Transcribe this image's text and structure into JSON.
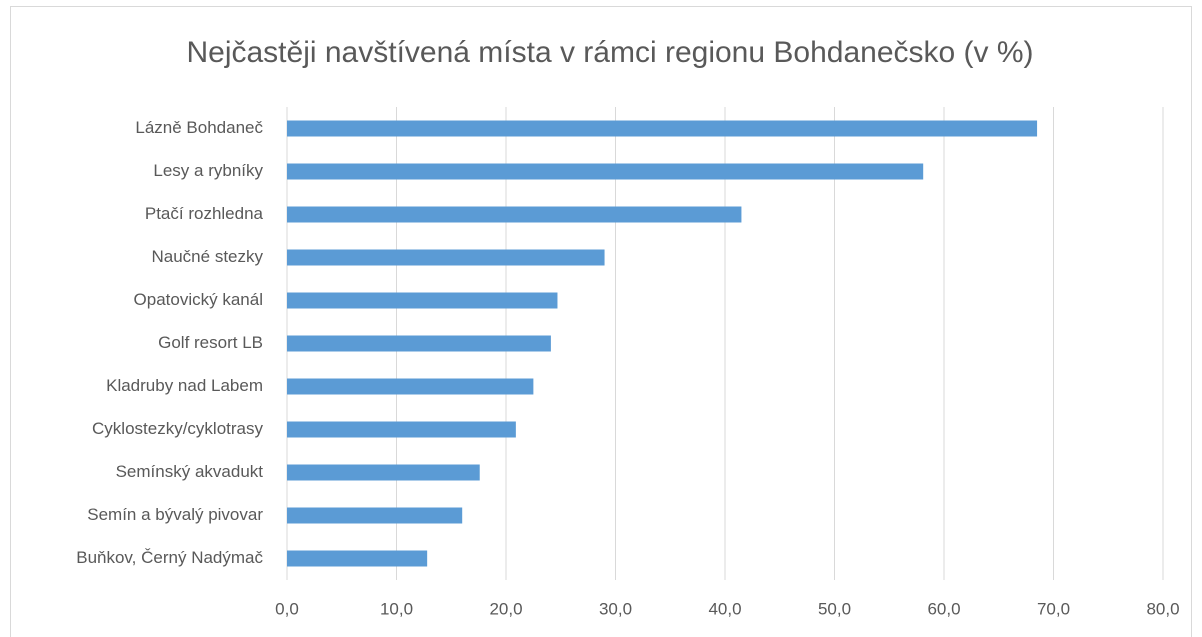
{
  "chart_data": {
    "type": "hbar",
    "title": "Nejčastěji navštívená místa v rámci regionu Bohdanečsko (v %)",
    "categories": [
      "Lázně Bohdaneč",
      "Lesy a rybníky",
      "Ptačí rozhledna",
      "Naučné stezky",
      "Opatovický kanál",
      "Golf resort LB",
      "Kladruby nad Labem",
      "Cyklostezky/cyklotrasy",
      "Semínský akvadukt",
      "Semín a bývalý pivovar",
      "Buňkov, Černý Nadýmač"
    ],
    "values": [
      68.5,
      58.1,
      41.5,
      29.0,
      24.7,
      24.1,
      22.5,
      20.9,
      17.6,
      16.0,
      12.8
    ],
    "color": "#5b9bd5",
    "xlim": [
      0,
      80
    ],
    "xticks": [
      {
        "value": 0,
        "label": "0,0"
      },
      {
        "value": 10,
        "label": "10,0"
      },
      {
        "value": 20,
        "label": "20,0"
      },
      {
        "value": 30,
        "label": "30,0"
      },
      {
        "value": 40,
        "label": "40,0"
      },
      {
        "value": 50,
        "label": "50,0"
      },
      {
        "value": 60,
        "label": "60,0"
      },
      {
        "value": 70,
        "label": "70,0"
      },
      {
        "value": 80,
        "label": "80,0"
      }
    ],
    "grid": true
  }
}
